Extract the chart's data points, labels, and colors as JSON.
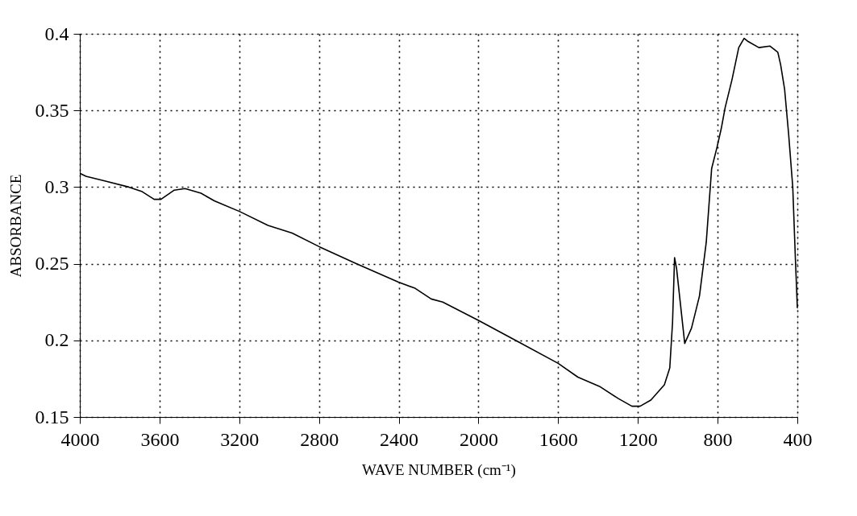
{
  "chart_data": {
    "type": "line",
    "xlabel": "WAVE NUMBER (cm⁻¹)",
    "ylabel": "ABSORBANCE",
    "xlim": [
      4000,
      400
    ],
    "xticks": [
      4000,
      3600,
      3200,
      2800,
      2400,
      2000,
      1600,
      1200,
      800,
      400
    ],
    "ylim": [
      0.15,
      0.4
    ],
    "yticks": [
      0.15,
      0.2,
      0.25,
      0.3,
      0.35,
      0.4
    ],
    "grid": true,
    "line_style": "solid",
    "series": [
      {
        "color": "#000000",
        "x": [
          4000,
          3969,
          3875,
          3754,
          3687,
          3627,
          3593,
          3526,
          3472,
          3392,
          3325,
          3197,
          3056,
          2935,
          2797,
          2613,
          2401,
          2318,
          2237,
          2179,
          2000,
          1799,
          1600,
          1501,
          1393,
          1298,
          1230,
          1189,
          1135,
          1067,
          1040,
          1026,
          1016,
          1006,
          965,
          931,
          891,
          857,
          830,
          803,
          782,
          762,
          728,
          694,
          667,
          647,
          593,
          538,
          498,
          484,
          464,
          444,
          423,
          410,
          400
        ],
        "values": [
          0.309,
          0.307,
          0.304,
          0.3,
          0.297,
          0.292,
          0.292,
          0.298,
          0.299,
          0.296,
          0.291,
          0.284,
          0.275,
          0.27,
          0.261,
          0.25,
          0.238,
          0.234,
          0.227,
          0.225,
          0.213,
          0.199,
          0.185,
          0.176,
          0.17,
          0.162,
          0.157,
          0.157,
          0.161,
          0.171,
          0.182,
          0.212,
          0.254,
          0.247,
          0.198,
          0.208,
          0.229,
          0.264,
          0.312,
          0.326,
          0.338,
          0.352,
          0.37,
          0.391,
          0.397,
          0.395,
          0.391,
          0.392,
          0.388,
          0.38,
          0.364,
          0.335,
          0.3,
          0.254,
          0.221
        ]
      }
    ]
  }
}
